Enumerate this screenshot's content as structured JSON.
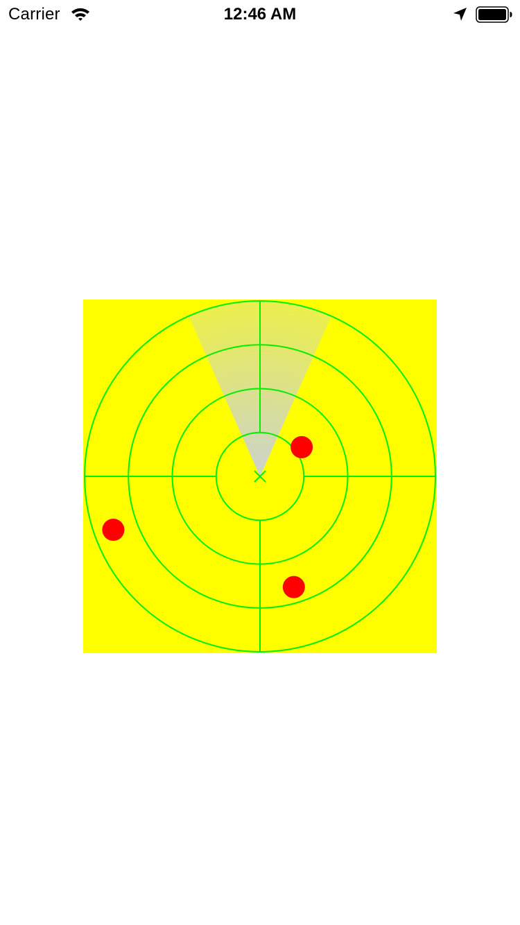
{
  "status_bar": {
    "carrier": "Carrier",
    "time": "12:46 AM",
    "icons": [
      "wifi-icon",
      "location-arrow-icon",
      "battery-icon"
    ]
  },
  "radar": {
    "background_color": "#ffff00",
    "grid_color": "#00ee00",
    "ring_count": 4,
    "sweep": {
      "color": "#c8d0d8",
      "heading_deg": 0,
      "width_deg": 48
    },
    "blips": [
      {
        "name": "blip-upper-right",
        "bearing_deg": 55,
        "range": 0.29,
        "color": "#ff0000"
      },
      {
        "name": "blip-left",
        "bearing_deg": 250,
        "range": 0.89,
        "color": "#ff0000"
      },
      {
        "name": "blip-lower-right",
        "bearing_deg": 163,
        "range": 0.66,
        "color": "#ff0000"
      }
    ]
  }
}
